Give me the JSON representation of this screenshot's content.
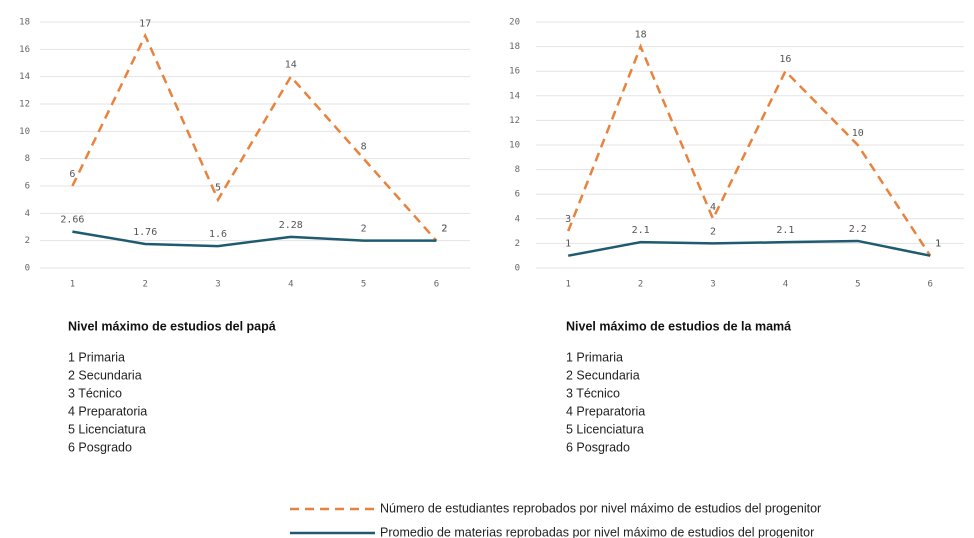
{
  "chart_data": [
    {
      "type": "line",
      "categories": [
        "1",
        "2",
        "3",
        "4",
        "5",
        "6"
      ],
      "series": [
        {
          "name": "Número de estudiantes reprobados por nivel máximo de estudios del progenitor",
          "color": "#e8823c",
          "dash": true,
          "values": [
            6,
            17,
            5,
            14,
            8,
            2
          ]
        },
        {
          "name": "Promedio de materias reprobadas por nivel máximo de estudios del progenitor",
          "color": "#1f5b70",
          "dash": false,
          "values": [
            2.66,
            1.76,
            1.6,
            2.28,
            2,
            2
          ]
        }
      ],
      "ylim": [
        0,
        18
      ],
      "yticks": [
        0,
        2,
        4,
        6,
        8,
        10,
        12,
        14,
        16,
        18
      ],
      "grid": true,
      "x_label": "Nivel máximo de estudios del papá",
      "notes": [
        "1 Primaria",
        "2 Secundaria",
        "3 Técnico",
        "4 Preparatoria",
        "5 Licenciatura",
        "6 Posgrado"
      ]
    },
    {
      "type": "line",
      "categories": [
        "1",
        "2",
        "3",
        "4",
        "5",
        "6"
      ],
      "series": [
        {
          "color": "#e8823c",
          "dash": true,
          "values": [
            3,
            18,
            4,
            16,
            10,
            1
          ]
        },
        {
          "color": "#1f5b70",
          "dash": false,
          "values": [
            1,
            2.1,
            2,
            2.1,
            2.2,
            1
          ]
        }
      ],
      "ylim": [
        0,
        20
      ],
      "yticks": [
        0,
        2,
        4,
        6,
        8,
        10,
        12,
        14,
        16,
        18,
        20
      ],
      "grid": true,
      "x_label": "Nivel máximo de estudios de la mamá",
      "notes": [
        "1 Primaria",
        "2 Secundaria",
        "3 Técnico",
        "4 Preparatoria",
        "5 Licenciatura",
        "6 Posgrado"
      ]
    }
  ]
}
